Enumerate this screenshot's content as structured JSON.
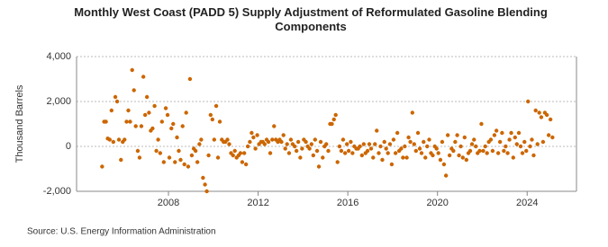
{
  "chart_data": {
    "type": "scatter",
    "title": "Monthly West Coast (PADD 5) Supply Adjustment of Reformulated Gasoline Blending Components",
    "y_label": "Thousand Barrels",
    "source": "Source: U.S. Energy Information Administration",
    "color": "#cc6600",
    "grid": true,
    "xlim": [
      2003.9,
      2026.2
    ],
    "xticks": [
      2008,
      2012,
      2016,
      2020,
      2024
    ],
    "ylim": [
      -2000,
      4000
    ],
    "yticks": [
      {
        "value": -2000,
        "label": "-2,000"
      },
      0,
      {
        "value": 2000,
        "label": "2,000"
      },
      {
        "value": 4000,
        "label": "4,000"
      }
    ],
    "x": [
      2005.04,
      2005.13,
      2005.21,
      2005.29,
      2005.38,
      2005.46,
      2005.54,
      2005.63,
      2005.71,
      2005.79,
      2005.88,
      2005.96,
      2006.04,
      2006.13,
      2006.21,
      2006.29,
      2006.38,
      2006.46,
      2006.54,
      2006.63,
      2006.71,
      2006.79,
      2006.88,
      2006.96,
      2007.04,
      2007.13,
      2007.21,
      2007.29,
      2007.38,
      2007.46,
      2007.54,
      2007.63,
      2007.71,
      2007.79,
      2007.88,
      2007.96,
      2008.04,
      2008.13,
      2008.21,
      2008.29,
      2008.38,
      2008.46,
      2008.54,
      2008.63,
      2008.71,
      2008.79,
      2008.88,
      2008.96,
      2009.04,
      2009.13,
      2009.21,
      2009.29,
      2009.38,
      2009.46,
      2009.54,
      2009.63,
      2009.71,
      2009.79,
      2009.88,
      2009.96,
      2010.04,
      2010.13,
      2010.21,
      2010.29,
      2010.38,
      2010.46,
      2010.54,
      2010.63,
      2010.71,
      2010.79,
      2010.88,
      2010.96,
      2011.04,
      2011.13,
      2011.21,
      2011.29,
      2011.38,
      2011.46,
      2011.54,
      2011.63,
      2011.71,
      2011.79,
      2011.88,
      2011.96,
      2012.04,
      2012.13,
      2012.21,
      2012.29,
      2012.38,
      2012.46,
      2012.54,
      2012.63,
      2012.71,
      2012.79,
      2012.88,
      2012.96,
      2013.04,
      2013.13,
      2013.21,
      2013.29,
      2013.38,
      2013.46,
      2013.54,
      2013.63,
      2013.71,
      2013.79,
      2013.88,
      2013.96,
      2014.04,
      2014.13,
      2014.21,
      2014.29,
      2014.38,
      2014.46,
      2014.54,
      2014.63,
      2014.71,
      2014.79,
      2014.88,
      2014.96,
      2015.04,
      2015.13,
      2015.21,
      2015.29,
      2015.38,
      2015.46,
      2015.54,
      2015.63,
      2015.71,
      2015.79,
      2015.88,
      2015.96,
      2016.04,
      2016.13,
      2016.21,
      2016.29,
      2016.38,
      2016.46,
      2016.54,
      2016.63,
      2016.71,
      2016.79,
      2016.88,
      2016.96,
      2017.04,
      2017.13,
      2017.21,
      2017.29,
      2017.38,
      2017.46,
      2017.54,
      2017.63,
      2017.71,
      2017.79,
      2017.88,
      2017.96,
      2018.04,
      2018.13,
      2018.21,
      2018.29,
      2018.38,
      2018.46,
      2018.54,
      2018.63,
      2018.71,
      2018.79,
      2018.88,
      2018.96,
      2019.04,
      2019.13,
      2019.21,
      2019.29,
      2019.38,
      2019.46,
      2019.54,
      2019.63,
      2019.71,
      2019.79,
      2019.88,
      2019.96,
      2020.04,
      2020.13,
      2020.21,
      2020.29,
      2020.38,
      2020.46,
      2020.54,
      2020.63,
      2020.71,
      2020.79,
      2020.88,
      2020.96,
      2021.04,
      2021.13,
      2021.21,
      2021.29,
      2021.38,
      2021.46,
      2021.54,
      2021.63,
      2021.71,
      2021.79,
      2021.88,
      2021.96,
      2022.04,
      2022.13,
      2022.21,
      2022.29,
      2022.38,
      2022.46,
      2022.54,
      2022.63,
      2022.71,
      2022.79,
      2022.88,
      2022.96,
      2023.04,
      2023.13,
      2023.21,
      2023.29,
      2023.38,
      2023.46,
      2023.54,
      2023.63,
      2023.71,
      2023.79,
      2023.88,
      2023.96,
      2024.04,
      2024.13,
      2024.21,
      2024.29,
      2024.38,
      2024.46,
      2024.54,
      2024.63,
      2024.71,
      2024.79,
      2024.88,
      2024.96,
      2025.04,
      2025.13
    ],
    "values": [
      -900,
      1100,
      1100,
      350,
      300,
      1600,
      200,
      2200,
      2000,
      300,
      -600,
      200,
      300,
      1100,
      1600,
      1100,
      3400,
      2500,
      900,
      -200,
      -500,
      900,
      3100,
      1400,
      2200,
      1500,
      700,
      800,
      1800,
      -200,
      300,
      -300,
      1100,
      -700,
      1700,
      1400,
      -500,
      800,
      1000,
      -700,
      400,
      -200,
      -600,
      900,
      -800,
      1500,
      -900,
      3000,
      -400,
      -100,
      -200,
      -700,
      100,
      300,
      -1400,
      -1700,
      -2000,
      -400,
      1400,
      1200,
      300,
      1800,
      -500,
      1100,
      300,
      200,
      200,
      300,
      100,
      -300,
      -400,
      -200,
      -500,
      -400,
      -300,
      -700,
      -300,
      -800,
      0,
      200,
      600,
      400,
      -100,
      500,
      100,
      200,
      200,
      100,
      300,
      200,
      -300,
      300,
      900,
      300,
      200,
      300,
      200,
      500,
      -100,
      100,
      -300,
      300,
      100,
      0,
      -200,
      200,
      -500,
      -100,
      300,
      200,
      0,
      -100,
      100,
      -400,
      300,
      -200,
      -900,
      200,
      -500,
      0,
      100,
      -200,
      1000,
      1000,
      1200,
      1400,
      -700,
      0,
      -200,
      300,
      -300,
      100,
      -200,
      200,
      -300,
      0,
      -100,
      -100,
      0,
      -400,
      100,
      -300,
      -200,
      100,
      -100,
      -500,
      100,
      700,
      -300,
      0,
      -600,
      200,
      -100,
      -300,
      100,
      -800,
      300,
      -300,
      600,
      -200,
      -100,
      -500,
      0,
      -500,
      400,
      200,
      1500,
      100,
      -200,
      600,
      -100,
      -300,
      200,
      -500,
      0,
      300,
      -300,
      -400,
      0,
      -100,
      -300,
      -600,
      200,
      -800,
      -1300,
      500,
      -400,
      -100,
      -200,
      200,
      500,
      -400,
      0,
      -500,
      400,
      -600,
      -300,
      -200,
      100,
      300,
      0,
      -300,
      -200,
      1000,
      -200,
      0,
      -300,
      200,
      300,
      -200,
      500,
      700,
      -300,
      200,
      600,
      -200,
      0,
      -300,
      300,
      600,
      -500,
      400,
      100,
      600,
      0,
      -300,
      200,
      -200,
      2000,
      0,
      300,
      -400,
      1600,
      100,
      1500,
      1300,
      200,
      1500,
      1400,
      500,
      1200,
      400
    ]
  }
}
